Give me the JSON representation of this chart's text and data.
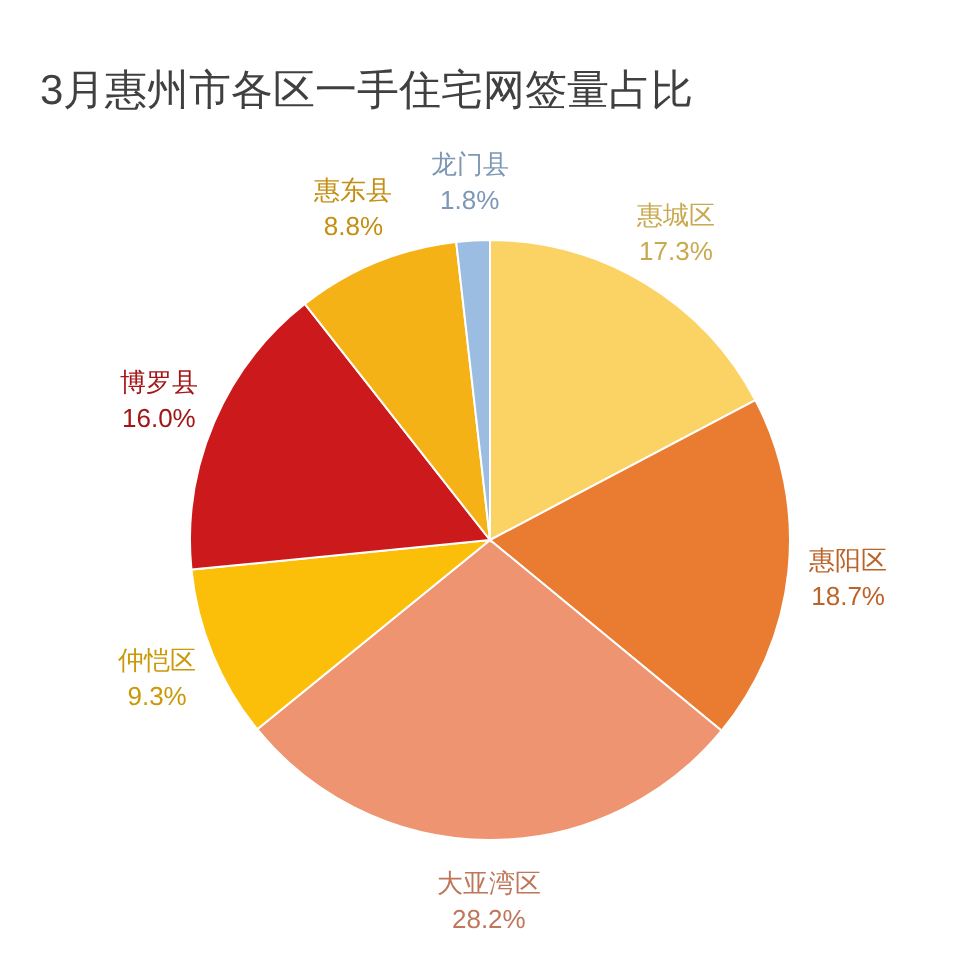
{
  "chart_data": {
    "type": "pie",
    "title": "3月惠州市各区一手住宅网签量占比",
    "categories": [
      "惠城区",
      "惠阳区",
      "大亚湾区",
      "仲恺区",
      "博罗县",
      "惠东县",
      "龙门县"
    ],
    "values": [
      17.3,
      18.7,
      28.2,
      9.3,
      16.0,
      8.8,
      1.8
    ],
    "colors": [
      "#fbd364",
      "#ea7c32",
      "#ef9470",
      "#fbbf0a",
      "#cc1a1c",
      "#f5b217",
      "#9cbde2"
    ],
    "value_labels": [
      "17.3%",
      "18.7%",
      "28.2%",
      "9.3%",
      "16.0%",
      "8.8%",
      "1.8%"
    ],
    "legend": false
  }
}
